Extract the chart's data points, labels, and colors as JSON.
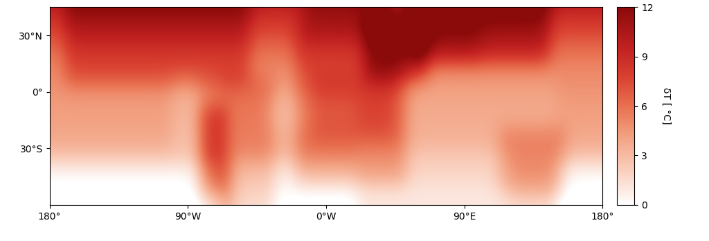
{
  "cbar_label": "δT [ °C]",
  "cbar_ticks": [
    0,
    3,
    6,
    9,
    12
  ],
  "vmin": 0,
  "vmax": 12,
  "lat_ticks": [
    30,
    0,
    -30
  ],
  "lat_labels": [
    "30°N",
    "0°",
    "30°S"
  ],
  "lon_ticks": [
    -180,
    -90,
    0,
    90,
    180
  ],
  "lon_labels": [
    "180°",
    "90°W",
    "0°W",
    "90°E",
    "180°"
  ],
  "extent": [
    -180,
    180,
    -60,
    45
  ],
  "colormap_colors": [
    "#ffffff",
    "#fce8e0",
    "#f9c8b4",
    "#f2a080",
    "#e87050",
    "#d94030",
    "#c02020",
    "#8b0a0a"
  ],
  "colormap_values": [
    0.0,
    0.08,
    0.2,
    0.35,
    0.5,
    0.65,
    0.8,
    1.0
  ],
  "figsize": [
    10.24,
    3.48
  ],
  "dpi": 100,
  "coastline_lw": 0.8
}
